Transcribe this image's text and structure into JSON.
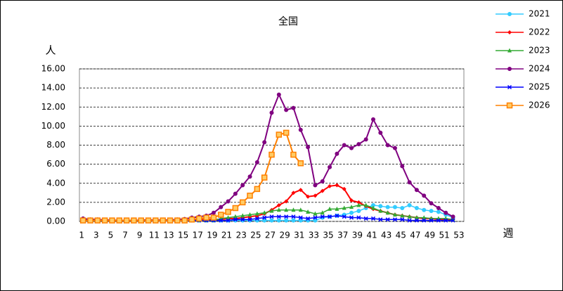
{
  "chart_data": {
    "type": "line",
    "title": "全国",
    "y_label": "人",
    "x_label": "週",
    "categories": [
      "1",
      null,
      "3",
      null,
      "5",
      null,
      "7",
      null,
      "9",
      null,
      "11",
      null,
      "13",
      null,
      "15",
      null,
      "17",
      null,
      "19",
      null,
      "21",
      null,
      "23",
      null,
      "25",
      null,
      "27",
      null,
      "29",
      null,
      "31",
      null,
      "33",
      null,
      "35",
      null,
      "37",
      null,
      "39",
      null,
      "41",
      null,
      "43",
      null,
      "45",
      null,
      "47",
      null,
      "49",
      null,
      "51",
      null,
      "53"
    ],
    "ylim": [
      0,
      16
    ],
    "yticks": [
      {
        "value": 0,
        "label": "0.00"
      },
      {
        "value": 2,
        "label": "2.00"
      },
      {
        "value": 4,
        "label": "4.00"
      },
      {
        "value": 6,
        "label": "6.00"
      },
      {
        "value": 8,
        "label": "8.00"
      },
      {
        "value": 10,
        "label": "10.00"
      },
      {
        "value": 12,
        "label": "12.00"
      },
      {
        "value": 14,
        "label": "14.00"
      },
      {
        "value": 16,
        "label": "16.00"
      }
    ],
    "grid": true,
    "legend": "right",
    "series": [
      {
        "name": "2021",
        "color": "#33ccff",
        "marker": "circle",
        "values": [
          0.1,
          0.1,
          0.1,
          0.1,
          0.1,
          0.1,
          0.1,
          0.1,
          0.1,
          0.1,
          0.1,
          0.1,
          0.1,
          0.1,
          0.1,
          0.1,
          0.1,
          0.1,
          0.1,
          0.1,
          0.1,
          0.1,
          0.1,
          0.1,
          0.1,
          0.1,
          0.1,
          0.1,
          0.1,
          0.1,
          0.1,
          0.1,
          0.1,
          0.4,
          0.5,
          0.6,
          0.7,
          0.9,
          1.1,
          1.4,
          1.7,
          1.6,
          1.5,
          1.5,
          1.4,
          1.7,
          1.4,
          1.2,
          1.1,
          1.0,
          0.7,
          0.4,
          null
        ]
      },
      {
        "name": "2022",
        "color": "#ff0000",
        "marker": "diamond",
        "values": [
          0.2,
          0.2,
          0.2,
          0.1,
          0.1,
          0.1,
          0.1,
          0.1,
          0.1,
          0.1,
          0.1,
          0.1,
          0.1,
          0.1,
          0.1,
          0.1,
          0.2,
          0.2,
          0.2,
          0.2,
          0.3,
          0.3,
          0.4,
          0.5,
          0.6,
          0.8,
          1.2,
          1.7,
          2.1,
          3.0,
          3.3,
          2.6,
          2.7,
          3.2,
          3.7,
          3.8,
          3.4,
          2.2,
          2.0,
          1.6,
          1.3,
          1.1,
          0.9,
          0.7,
          0.6,
          0.5,
          0.4,
          0.3,
          0.3,
          0.2,
          0.2,
          0.2,
          null
        ]
      },
      {
        "name": "2023",
        "color": "#33aa33",
        "marker": "triangle",
        "values": [
          0.1,
          0.1,
          0.1,
          0.1,
          0.1,
          0.1,
          0.1,
          0.1,
          0.1,
          0.1,
          0.1,
          0.1,
          0.1,
          0.1,
          0.1,
          0.1,
          0.1,
          0.1,
          0.1,
          0.3,
          0.4,
          0.5,
          0.6,
          0.7,
          0.8,
          0.9,
          1.1,
          1.2,
          1.2,
          1.2,
          1.2,
          1.0,
          0.8,
          0.9,
          1.3,
          1.3,
          1.4,
          1.5,
          1.7,
          1.7,
          1.4,
          1.1,
          0.9,
          0.7,
          0.6,
          0.5,
          0.4,
          0.4,
          0.3,
          0.3,
          0.3,
          0.2,
          null
        ]
      },
      {
        "name": "2024",
        "color": "#800080",
        "marker": "circle",
        "values": [
          0.3,
          0.2,
          0.2,
          0.15,
          0.15,
          0.1,
          0.1,
          0.1,
          0.15,
          0.15,
          0.15,
          0.15,
          0.15,
          0.2,
          0.25,
          0.4,
          0.5,
          0.6,
          0.9,
          1.5,
          2.1,
          2.9,
          3.8,
          4.7,
          6.2,
          8.3,
          11.4,
          13.3,
          11.7,
          11.9,
          9.6,
          7.8,
          3.8,
          4.2,
          5.7,
          7.1,
          8.0,
          7.7,
          8.1,
          8.6,
          10.7,
          9.3,
          8.0,
          7.7,
          5.8,
          4.1,
          3.3,
          2.7,
          1.9,
          1.4,
          0.9,
          0.5,
          null
        ]
      },
      {
        "name": "2025",
        "color": "#0000ff",
        "marker": "cross",
        "values": [
          0.1,
          0.1,
          0.1,
          0.1,
          0.1,
          0.1,
          0.1,
          0.1,
          0.1,
          0.1,
          0.1,
          0.1,
          0.1,
          0.1,
          0.1,
          0.1,
          0.1,
          0.1,
          0.1,
          0.1,
          0.1,
          0.2,
          0.2,
          0.2,
          0.3,
          0.4,
          0.5,
          0.5,
          0.5,
          0.5,
          0.4,
          0.3,
          0.4,
          0.5,
          0.5,
          0.6,
          0.5,
          0.4,
          0.4,
          0.3,
          0.3,
          0.2,
          0.2,
          0.2,
          0.2,
          0.1,
          0.1,
          0.1,
          0.1,
          0.1,
          0.1,
          0.1,
          null
        ]
      },
      {
        "name": "2026",
        "color": "#ff8000",
        "marker": "square",
        "values": [
          0.1,
          0.1,
          0.1,
          0.1,
          0.1,
          0.1,
          0.1,
          0.1,
          0.1,
          0.1,
          0.1,
          0.1,
          0.1,
          0.1,
          0.1,
          0.2,
          0.3,
          0.4,
          0.4,
          0.7,
          1.0,
          1.4,
          2.0,
          2.7,
          3.4,
          4.6,
          7.0,
          9.1,
          9.3,
          7.0,
          6.1,
          null,
          null,
          null,
          null,
          null,
          null,
          null,
          null,
          null,
          null,
          null,
          null,
          null,
          null,
          null,
          null,
          null,
          null,
          null,
          null,
          null,
          null
        ]
      }
    ]
  }
}
